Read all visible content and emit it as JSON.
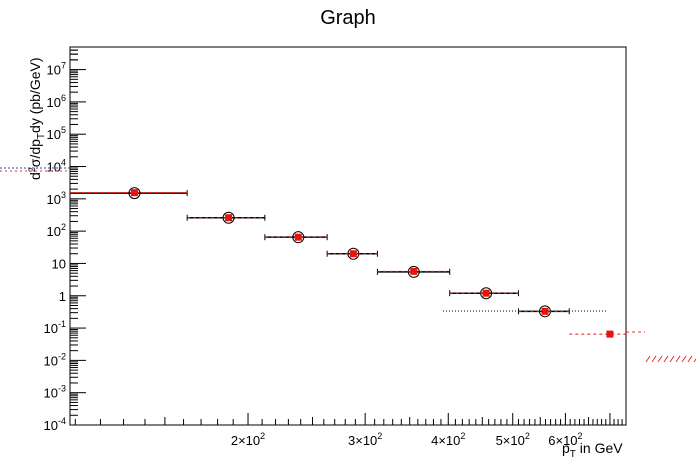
{
  "chart_data": {
    "type": "scatter",
    "title": "Graph",
    "xlabel": {
      "main": "p",
      "sub": "T",
      "rest": " in GeV"
    },
    "ylabel": {
      "p1": "d",
      "sup": "2",
      "p2": "σ/dp",
      "sub": "T",
      "p3": "dy (pb/GeV)"
    },
    "x_scale": "log",
    "y_scale": "log",
    "xlim": [
      108,
      740
    ],
    "ylim": [
      0.0001,
      50000000
    ],
    "grid": false,
    "x_ticks": [
      {
        "value": 200,
        "mant": "2×10",
        "exp": "2"
      },
      {
        "value": 300,
        "mant": "3×10",
        "exp": "2"
      },
      {
        "value": 400,
        "mant": "4×10",
        "exp": "2"
      },
      {
        "value": 500,
        "mant": "5×10",
        "exp": "2"
      },
      {
        "value": 600,
        "mant": "6×10",
        "exp": "2"
      }
    ],
    "y_ticks": [
      {
        "value": 0.0001,
        "mant": "10",
        "exp": "-4"
      },
      {
        "value": 0.001,
        "mant": "10",
        "exp": "-3"
      },
      {
        "value": 0.01,
        "mant": "10",
        "exp": "-2"
      },
      {
        "value": 0.1,
        "mant": "10",
        "exp": "-1"
      },
      {
        "value": 1,
        "mant": "1",
        "exp": ""
      },
      {
        "value": 10,
        "mant": "10",
        "exp": ""
      },
      {
        "value": 100,
        "mant": "10",
        "exp": "2"
      },
      {
        "value": 1000,
        "mant": "10",
        "exp": "3"
      },
      {
        "value": 10000,
        "mant": "10",
        "exp": "4"
      },
      {
        "value": 100000,
        "mant": "10",
        "exp": "5"
      },
      {
        "value": 1000000,
        "mant": "10",
        "exp": "6"
      },
      {
        "value": 10000000,
        "mant": "10",
        "exp": "7"
      }
    ],
    "series": [
      {
        "marker": "open-circle",
        "color": "#000000",
        "points": [
          {
            "x": 135,
            "xlow": 108,
            "xhigh": 162,
            "y": 1500
          },
          {
            "x": 187,
            "xlow": 162,
            "xhigh": 212,
            "y": 260
          },
          {
            "x": 238,
            "xlow": 212,
            "xhigh": 263,
            "y": 65
          },
          {
            "x": 288,
            "xlow": 263,
            "xhigh": 313,
            "y": 20
          },
          {
            "x": 355,
            "xlow": 313,
            "xhigh": 402,
            "y": 5.5
          },
          {
            "x": 456,
            "xlow": 402,
            "xhigh": 510,
            "y": 1.2
          },
          {
            "x": 559,
            "xlow": 510,
            "xhigh": 608,
            "y": 0.33
          }
        ]
      },
      {
        "marker": "filled-square",
        "color": "#e8140c",
        "points": [
          {
            "x": 135,
            "xlow": 108,
            "xhigh": 162,
            "y": 1550
          },
          {
            "x": 187,
            "xlow": 162,
            "xhigh": 212,
            "y": 260
          },
          {
            "x": 238,
            "xlow": 212,
            "xhigh": 263,
            "y": 65
          },
          {
            "x": 288,
            "xlow": 263,
            "xhigh": 313,
            "y": 20
          },
          {
            "x": 355,
            "xlow": 313,
            "xhigh": 402,
            "y": 5.7
          },
          {
            "x": 456,
            "xlow": 402,
            "xhigh": 510,
            "y": 1.2
          },
          {
            "x": 559,
            "xlow": 510,
            "xhigh": 608,
            "y": 0.33
          },
          {
            "x": 700,
            "xlow": 608,
            "xhigh": 740,
            "y": 0.065
          }
        ]
      }
    ]
  }
}
